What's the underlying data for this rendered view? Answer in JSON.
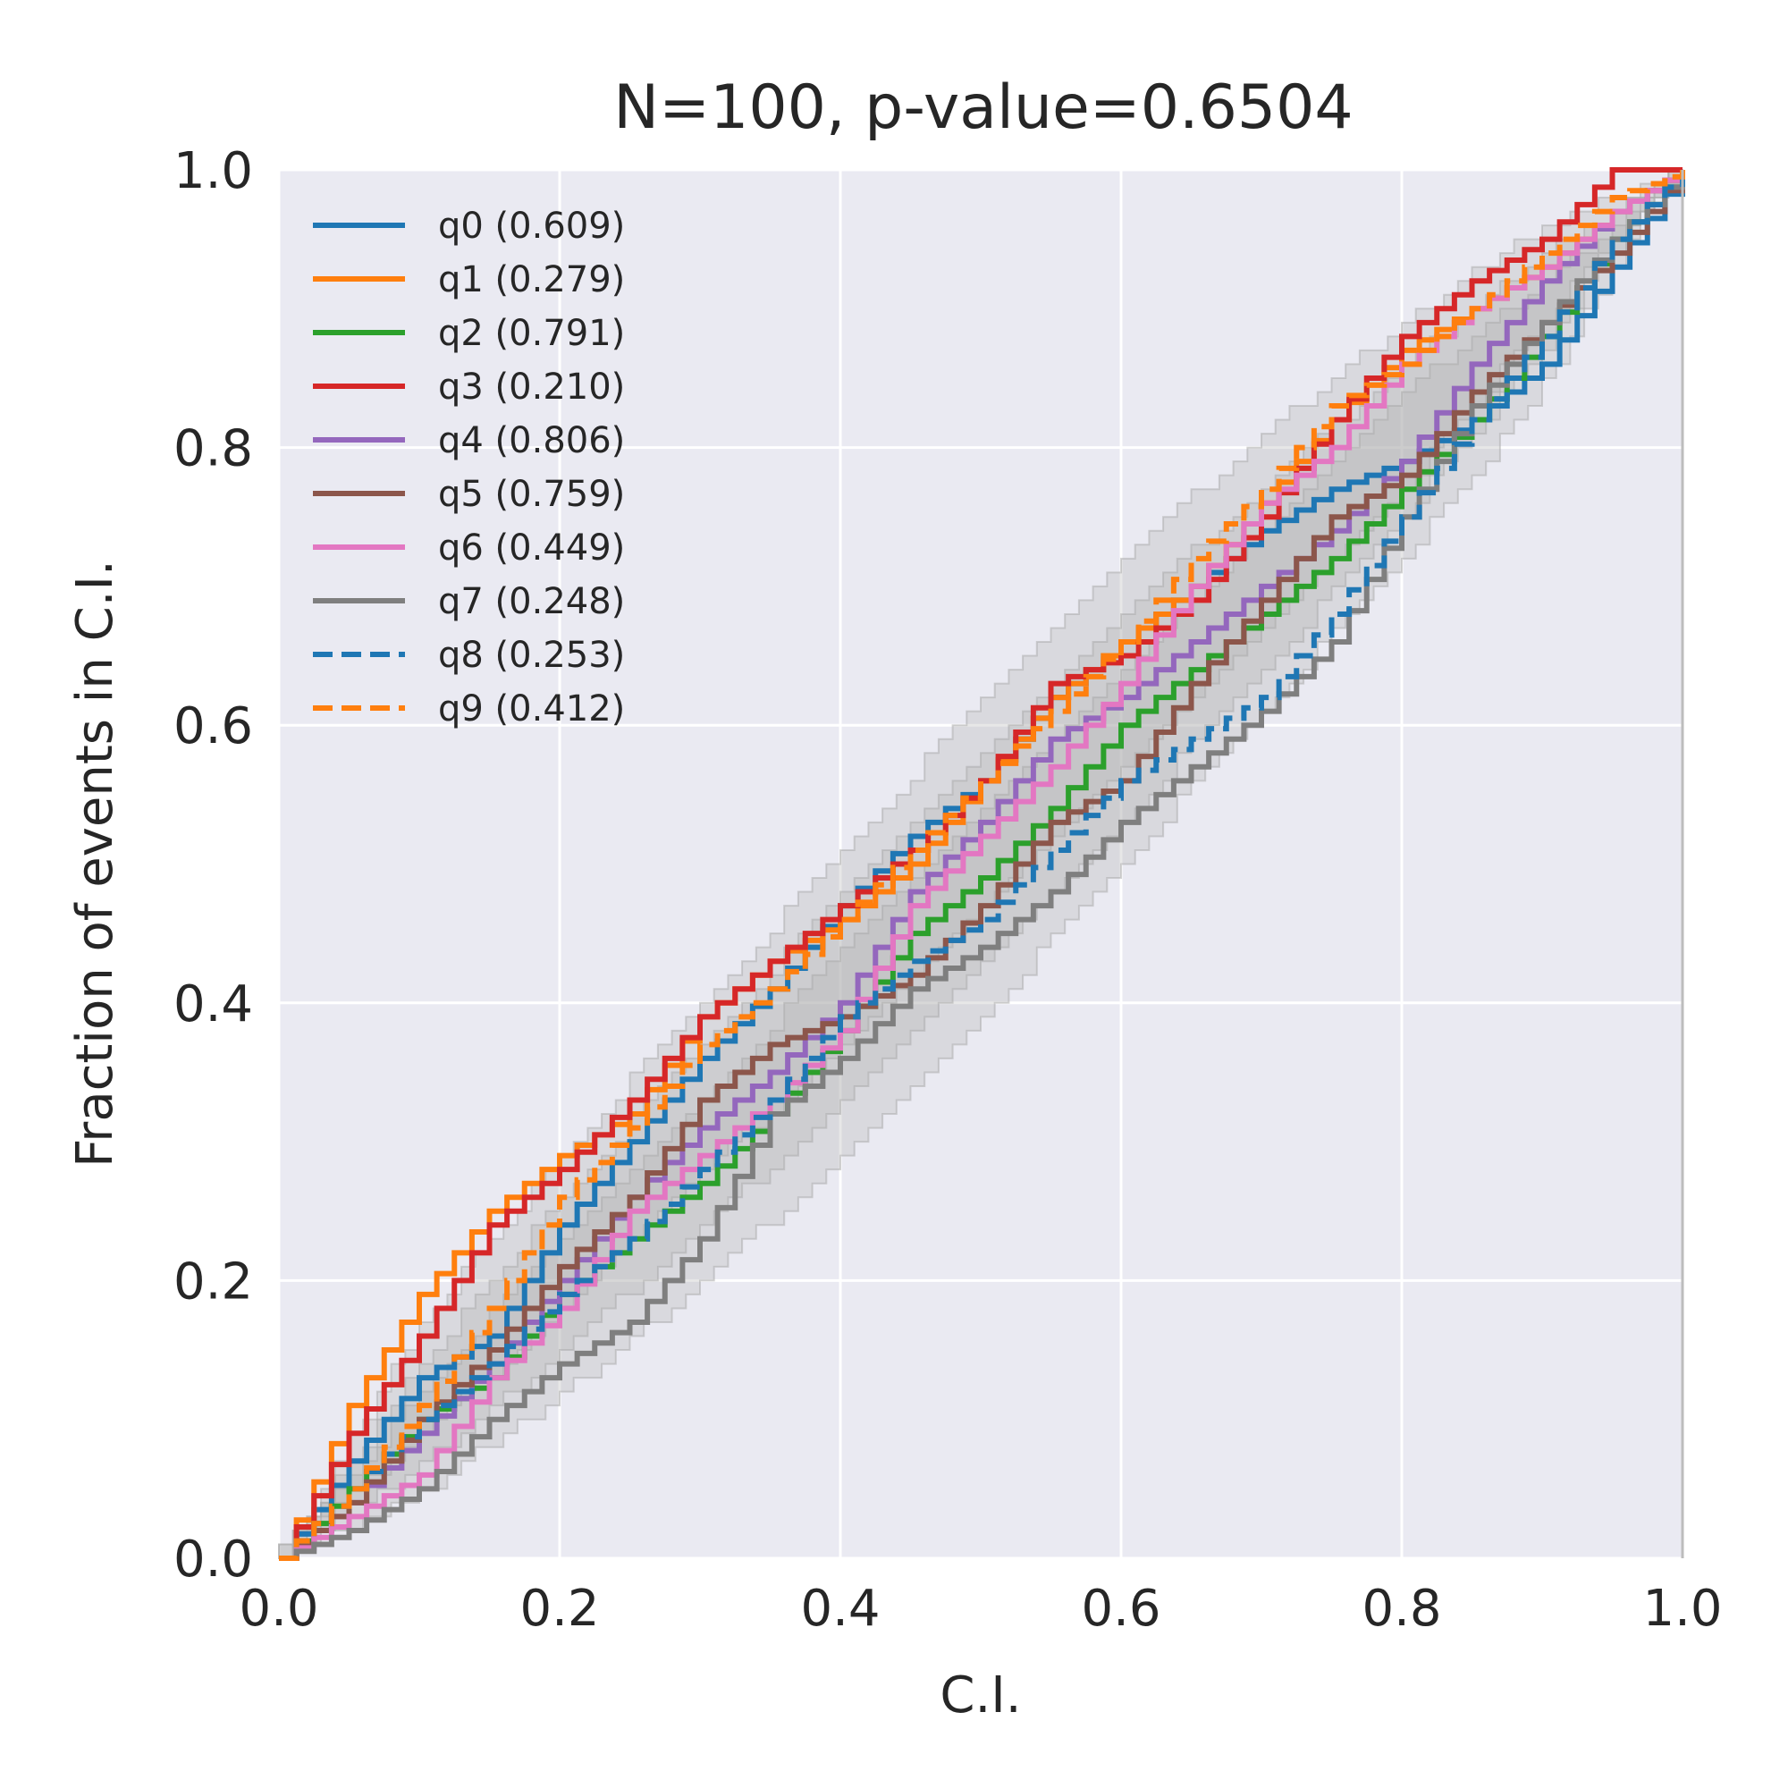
{
  "chart_data": {
    "type": "line",
    "title": "N=100, p-value=0.6504",
    "xlabel": "C.I.",
    "ylabel": "Fraction of events in C.I.",
    "xlim": [
      0,
      1
    ],
    "ylim": [
      0,
      1
    ],
    "xticks": [
      "0.0",
      "0.2",
      "0.4",
      "0.6",
      "0.8",
      "1.0"
    ],
    "yticks": [
      "0.0",
      "0.2",
      "0.4",
      "0.6",
      "0.8",
      "1.0"
    ],
    "grid": true,
    "legend_position": "upper-left",
    "confidence_bands": [
      {
        "level": "outer",
        "lower": [
          [
            0,
            0
          ],
          [
            0.1,
            0.04
          ],
          [
            0.2,
            0.11
          ],
          [
            0.3,
            0.19
          ],
          [
            0.4,
            0.28
          ],
          [
            0.5,
            0.38
          ],
          [
            0.6,
            0.49
          ],
          [
            0.7,
            0.6
          ],
          [
            0.8,
            0.71
          ],
          [
            0.9,
            0.83
          ],
          [
            1,
            1
          ]
        ],
        "upper": [
          [
            0,
            0
          ],
          [
            0.1,
            0.17
          ],
          [
            0.2,
            0.29
          ],
          [
            0.3,
            0.4
          ],
          [
            0.4,
            0.51
          ],
          [
            0.5,
            0.62
          ],
          [
            0.6,
            0.72
          ],
          [
            0.7,
            0.81
          ],
          [
            0.8,
            0.89
          ],
          [
            0.9,
            0.96
          ],
          [
            1,
            1
          ]
        ]
      },
      {
        "level": "middle",
        "lower": [
          [
            0,
            0
          ],
          [
            0.1,
            0.06
          ],
          [
            0.2,
            0.14
          ],
          [
            0.3,
            0.23
          ],
          [
            0.4,
            0.32
          ],
          [
            0.5,
            0.42
          ],
          [
            0.6,
            0.52
          ],
          [
            0.7,
            0.63
          ],
          [
            0.8,
            0.74
          ],
          [
            0.9,
            0.86
          ],
          [
            1,
            1
          ]
        ],
        "upper": [
          [
            0,
            0
          ],
          [
            0.1,
            0.14
          ],
          [
            0.2,
            0.26
          ],
          [
            0.3,
            0.37
          ],
          [
            0.4,
            0.48
          ],
          [
            0.5,
            0.58
          ],
          [
            0.6,
            0.68
          ],
          [
            0.7,
            0.77
          ],
          [
            0.8,
            0.86
          ],
          [
            0.9,
            0.94
          ],
          [
            1,
            1
          ]
        ]
      },
      {
        "level": "inner",
        "lower": [
          [
            0,
            0
          ],
          [
            0.1,
            0.08
          ],
          [
            0.2,
            0.17
          ],
          [
            0.3,
            0.27
          ],
          [
            0.4,
            0.36
          ],
          [
            0.5,
            0.46
          ],
          [
            0.6,
            0.56
          ],
          [
            0.7,
            0.66
          ],
          [
            0.8,
            0.76
          ],
          [
            0.9,
            0.88
          ],
          [
            1,
            1
          ]
        ],
        "upper": [
          [
            0,
            0
          ],
          [
            0.1,
            0.12
          ],
          [
            0.2,
            0.23
          ],
          [
            0.3,
            0.33
          ],
          [
            0.4,
            0.44
          ],
          [
            0.5,
            0.54
          ],
          [
            0.6,
            0.64
          ],
          [
            0.7,
            0.74
          ],
          [
            0.8,
            0.84
          ],
          [
            0.9,
            0.92
          ],
          [
            1,
            1
          ]
        ]
      }
    ],
    "series": [
      {
        "name": "q0 (0.609)",
        "color": "#1f77b4",
        "dash": "solid",
        "points": [
          [
            0,
            0
          ],
          [
            0.05,
            0.07
          ],
          [
            0.1,
            0.13
          ],
          [
            0.15,
            0.16
          ],
          [
            0.2,
            0.24
          ],
          [
            0.25,
            0.3
          ],
          [
            0.3,
            0.36
          ],
          [
            0.35,
            0.41
          ],
          [
            0.4,
            0.47
          ],
          [
            0.45,
            0.52
          ],
          [
            0.5,
            0.56
          ],
          [
            0.55,
            0.62
          ],
          [
            0.6,
            0.66
          ],
          [
            0.65,
            0.7
          ],
          [
            0.7,
            0.74
          ],
          [
            0.75,
            0.77
          ],
          [
            0.8,
            0.79
          ],
          [
            0.85,
            0.82
          ],
          [
            0.9,
            0.86
          ],
          [
            0.95,
            0.93
          ],
          [
            1,
            1
          ]
        ]
      },
      {
        "name": "q1 (0.279)",
        "color": "#ff7f0e",
        "dash": "solid",
        "points": [
          [
            0,
            0
          ],
          [
            0.05,
            0.11
          ],
          [
            0.1,
            0.19
          ],
          [
            0.15,
            0.25
          ],
          [
            0.2,
            0.29
          ],
          [
            0.25,
            0.32
          ],
          [
            0.3,
            0.39
          ],
          [
            0.35,
            0.43
          ],
          [
            0.4,
            0.46
          ],
          [
            0.45,
            0.5
          ],
          [
            0.5,
            0.56
          ],
          [
            0.55,
            0.62
          ],
          [
            0.6,
            0.66
          ],
          [
            0.65,
            0.7
          ],
          [
            0.7,
            0.76
          ],
          [
            0.75,
            0.82
          ],
          [
            0.8,
            0.87
          ],
          [
            0.85,
            0.9
          ],
          [
            0.9,
            0.93
          ],
          [
            0.95,
            0.97
          ],
          [
            1,
            1
          ]
        ]
      },
      {
        "name": "q2 (0.791)",
        "color": "#2ca02c",
        "dash": "solid",
        "points": [
          [
            0,
            0
          ],
          [
            0.05,
            0.05
          ],
          [
            0.1,
            0.1
          ],
          [
            0.15,
            0.13
          ],
          [
            0.2,
            0.19
          ],
          [
            0.25,
            0.23
          ],
          [
            0.3,
            0.27
          ],
          [
            0.35,
            0.32
          ],
          [
            0.4,
            0.38
          ],
          [
            0.45,
            0.45
          ],
          [
            0.5,
            0.49
          ],
          [
            0.55,
            0.54
          ],
          [
            0.6,
            0.6
          ],
          [
            0.65,
            0.64
          ],
          [
            0.7,
            0.68
          ],
          [
            0.75,
            0.72
          ],
          [
            0.8,
            0.77
          ],
          [
            0.85,
            0.82
          ],
          [
            0.9,
            0.88
          ],
          [
            0.95,
            0.95
          ],
          [
            1,
            1
          ]
        ]
      },
      {
        "name": "q3 (0.210)",
        "color": "#d62728",
        "dash": "solid",
        "points": [
          [
            0,
            0
          ],
          [
            0.05,
            0.09
          ],
          [
            0.1,
            0.16
          ],
          [
            0.15,
            0.24
          ],
          [
            0.2,
            0.28
          ],
          [
            0.25,
            0.33
          ],
          [
            0.3,
            0.39
          ],
          [
            0.35,
            0.43
          ],
          [
            0.4,
            0.47
          ],
          [
            0.45,
            0.51
          ],
          [
            0.5,
            0.56
          ],
          [
            0.55,
            0.63
          ],
          [
            0.6,
            0.65
          ],
          [
            0.65,
            0.69
          ],
          [
            0.7,
            0.75
          ],
          [
            0.75,
            0.82
          ],
          [
            0.8,
            0.88
          ],
          [
            0.85,
            0.92
          ],
          [
            0.9,
            0.95
          ],
          [
            0.95,
            1
          ],
          [
            1,
            1
          ]
        ]
      },
      {
        "name": "q4 (0.806)",
        "color": "#9467bd",
        "dash": "solid",
        "points": [
          [
            0,
            0
          ],
          [
            0.05,
            0.04
          ],
          [
            0.1,
            0.09
          ],
          [
            0.15,
            0.14
          ],
          [
            0.2,
            0.2
          ],
          [
            0.25,
            0.26
          ],
          [
            0.3,
            0.31
          ],
          [
            0.35,
            0.35
          ],
          [
            0.4,
            0.4
          ],
          [
            0.45,
            0.48
          ],
          [
            0.5,
            0.53
          ],
          [
            0.55,
            0.59
          ],
          [
            0.6,
            0.62
          ],
          [
            0.65,
            0.66
          ],
          [
            0.7,
            0.7
          ],
          [
            0.75,
            0.74
          ],
          [
            0.8,
            0.79
          ],
          [
            0.85,
            0.86
          ],
          [
            0.9,
            0.92
          ],
          [
            0.95,
            0.97
          ],
          [
            1,
            1
          ]
        ]
      },
      {
        "name": "q5 (0.759)",
        "color": "#8c564b",
        "dash": "solid",
        "points": [
          [
            0,
            0
          ],
          [
            0.05,
            0.04
          ],
          [
            0.1,
            0.1
          ],
          [
            0.15,
            0.15
          ],
          [
            0.2,
            0.21
          ],
          [
            0.25,
            0.26
          ],
          [
            0.3,
            0.33
          ],
          [
            0.35,
            0.37
          ],
          [
            0.4,
            0.39
          ],
          [
            0.45,
            0.42
          ],
          [
            0.5,
            0.47
          ],
          [
            0.55,
            0.53
          ],
          [
            0.6,
            0.56
          ],
          [
            0.65,
            0.63
          ],
          [
            0.7,
            0.69
          ],
          [
            0.75,
            0.75
          ],
          [
            0.8,
            0.78
          ],
          [
            0.85,
            0.84
          ],
          [
            0.9,
            0.89
          ],
          [
            0.95,
            0.94
          ],
          [
            1,
            1
          ]
        ]
      },
      {
        "name": "q6 (0.449)",
        "color": "#e377c2",
        "dash": "solid",
        "points": [
          [
            0,
            0
          ],
          [
            0.05,
            0.03
          ],
          [
            0.1,
            0.06
          ],
          [
            0.15,
            0.13
          ],
          [
            0.2,
            0.18
          ],
          [
            0.25,
            0.25
          ],
          [
            0.3,
            0.29
          ],
          [
            0.35,
            0.33
          ],
          [
            0.4,
            0.38
          ],
          [
            0.45,
            0.47
          ],
          [
            0.5,
            0.52
          ],
          [
            0.55,
            0.57
          ],
          [
            0.6,
            0.63
          ],
          [
            0.65,
            0.7
          ],
          [
            0.7,
            0.76
          ],
          [
            0.75,
            0.8
          ],
          [
            0.8,
            0.86
          ],
          [
            0.85,
            0.9
          ],
          [
            0.9,
            0.93
          ],
          [
            0.95,
            0.97
          ],
          [
            1,
            1
          ]
        ]
      },
      {
        "name": "q7 (0.248)",
        "color": "#7f7f7f",
        "dash": "solid",
        "points": [
          [
            0,
            0
          ],
          [
            0.05,
            0.02
          ],
          [
            0.1,
            0.05
          ],
          [
            0.15,
            0.1
          ],
          [
            0.2,
            0.14
          ],
          [
            0.25,
            0.17
          ],
          [
            0.3,
            0.23
          ],
          [
            0.35,
            0.32
          ],
          [
            0.4,
            0.36
          ],
          [
            0.45,
            0.41
          ],
          [
            0.5,
            0.44
          ],
          [
            0.55,
            0.48
          ],
          [
            0.6,
            0.53
          ],
          [
            0.65,
            0.57
          ],
          [
            0.7,
            0.61
          ],
          [
            0.75,
            0.66
          ],
          [
            0.8,
            0.75
          ],
          [
            0.85,
            0.83
          ],
          [
            0.9,
            0.89
          ],
          [
            0.95,
            0.95
          ],
          [
            1,
            1
          ]
        ]
      },
      {
        "name": "q8 (0.253)",
        "color": "#1f77b4",
        "dash": "dashed",
        "points": [
          [
            0,
            0
          ],
          [
            0.05,
            0.05
          ],
          [
            0.1,
            0.1
          ],
          [
            0.15,
            0.14
          ],
          [
            0.2,
            0.19
          ],
          [
            0.25,
            0.23
          ],
          [
            0.3,
            0.28
          ],
          [
            0.35,
            0.33
          ],
          [
            0.4,
            0.39
          ],
          [
            0.45,
            0.43
          ],
          [
            0.5,
            0.46
          ],
          [
            0.55,
            0.51
          ],
          [
            0.6,
            0.56
          ],
          [
            0.65,
            0.59
          ],
          [
            0.7,
            0.62
          ],
          [
            0.75,
            0.68
          ],
          [
            0.8,
            0.75
          ],
          [
            0.85,
            0.82
          ],
          [
            0.9,
            0.88
          ],
          [
            0.95,
            0.95
          ],
          [
            1,
            1
          ]
        ]
      },
      {
        "name": "q9 (0.412)",
        "color": "#ff7f0e",
        "dash": "dashed",
        "points": [
          [
            0,
            0
          ],
          [
            0.05,
            0.05
          ],
          [
            0.1,
            0.11
          ],
          [
            0.15,
            0.18
          ],
          [
            0.2,
            0.26
          ],
          [
            0.25,
            0.31
          ],
          [
            0.3,
            0.37
          ],
          [
            0.35,
            0.41
          ],
          [
            0.4,
            0.46
          ],
          [
            0.45,
            0.51
          ],
          [
            0.5,
            0.56
          ],
          [
            0.55,
            0.61
          ],
          [
            0.6,
            0.66
          ],
          [
            0.65,
            0.72
          ],
          [
            0.7,
            0.77
          ],
          [
            0.75,
            0.83
          ],
          [
            0.8,
            0.86
          ],
          [
            0.85,
            0.9
          ],
          [
            0.9,
            0.94
          ],
          [
            0.95,
            0.98
          ],
          [
            1,
            1
          ]
        ]
      }
    ],
    "colors": {
      "plot_background": "#eaeaf2",
      "grid": "#ffffff",
      "band": "#b4b4b4",
      "text": "#262626"
    }
  }
}
